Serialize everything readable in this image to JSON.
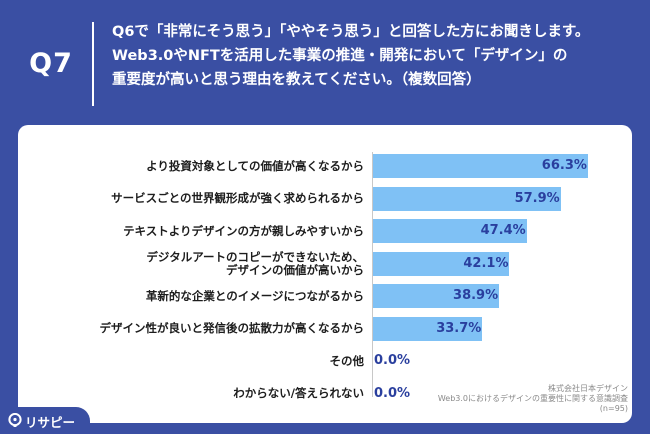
{
  "question": {
    "number": "Q7",
    "lines": [
      "Q6で「非常にそう思う」「ややそう思う」と回答した方にお聞きします。",
      "Web3.0やNFTを活用した事業の推進・開発において「デザイン」の",
      "重要度が高いと思う理由を教えてください。（複数回答）"
    ]
  },
  "chart_data": {
    "type": "bar",
    "orientation": "horizontal",
    "categories": [
      [
        "より投資対象としての価値が高くなるから"
      ],
      [
        "サービスごとの世界観形成が強く求められるから"
      ],
      [
        "テキストよりデザインの方が親しみやすいから"
      ],
      [
        "デジタルアートのコピーができないため、",
        "デザインの価値が高いから"
      ],
      [
        "革新的な企業とのイメージにつながるから"
      ],
      [
        "デザイン性が良いと発信後の拡散力が高くなるから"
      ],
      [
        "その他"
      ],
      [
        "わからない/答えられない"
      ]
    ],
    "values": [
      66.3,
      57.9,
      47.4,
      42.1,
      38.9,
      33.7,
      0.0,
      0.0
    ],
    "value_labels": [
      "66.3%",
      "57.9%",
      "47.4%",
      "42.1%",
      "38.9%",
      "33.7%",
      "0.0%",
      "0.0%"
    ],
    "unit": "%",
    "xlim": [
      0,
      100
    ],
    "bar_color": "#7fc1f5",
    "label_color": "#2a3f9e"
  },
  "source": {
    "lines": [
      "株式会社日本デザイン",
      "Web3.0におけるデザインの重要性に関する意識調査",
      "(n=95)"
    ]
  },
  "brand": {
    "name": "リサピー",
    "color": "#3a4fa3"
  }
}
